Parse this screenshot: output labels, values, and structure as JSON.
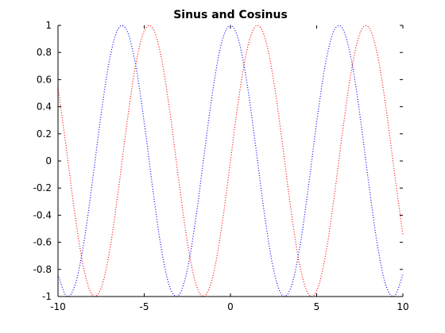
{
  "chart_data": {
    "type": "line",
    "title": "Sinus and Cosinus",
    "xlabel": "",
    "ylabel": "",
    "xlim": [
      -10,
      10
    ],
    "ylim": [
      -1,
      1
    ],
    "grid": false,
    "legend": "none",
    "xticks": [
      -10,
      -5,
      0,
      5,
      10
    ],
    "xtick_labels": [
      "-10",
      "-5",
      "0",
      "5",
      "10"
    ],
    "yticks": [
      1,
      0.8,
      0.6,
      0.4,
      0.2,
      0,
      -0.2,
      -0.4,
      -0.6,
      -0.8,
      -1
    ],
    "ytick_labels": [
      "1",
      "0.8",
      "0.6",
      "0.4",
      "0.2",
      "0",
      "-0.2",
      "-0.4",
      "-0.6",
      "-0.8",
      "-1"
    ],
    "series": [
      {
        "color": "#0000ff",
        "line_style": "dotted",
        "x": [
          -10,
          -9.5,
          -9,
          -8.5,
          -8,
          -7.5,
          -7,
          -6.5,
          -6,
          -5.5,
          -5,
          -4.5,
          -4,
          -3.5,
          -3,
          -2.5,
          -2,
          -1.5,
          -1,
          -0.5,
          0,
          0.5,
          1,
          1.5,
          2,
          2.5,
          3,
          3.5,
          4,
          4.5,
          5,
          5.5,
          6,
          6.5,
          7,
          7.5,
          8,
          8.5,
          9,
          9.5,
          10
        ],
        "y": [
          -0.839,
          -0.997,
          -0.911,
          -0.602,
          -0.146,
          0.347,
          0.754,
          0.977,
          0.96,
          0.709,
          0.284,
          -0.211,
          -0.654,
          -0.936,
          -0.99,
          -0.801,
          -0.416,
          0.071,
          0.54,
          0.878,
          1.0,
          0.878,
          0.54,
          0.071,
          -0.416,
          -0.801,
          -0.99,
          -0.936,
          -0.654,
          -0.211,
          0.284,
          0.709,
          0.96,
          0.977,
          0.754,
          0.347,
          -0.146,
          -0.602,
          -0.911,
          -0.997,
          -0.839
        ]
      },
      {
        "color": "#ff0000",
        "line_style": "dotted",
        "x": [
          -10,
          -9.5,
          -9,
          -8.5,
          -8,
          -7.5,
          -7,
          -6.5,
          -6,
          -5.5,
          -5,
          -4.5,
          -4,
          -3.5,
          -3,
          -2.5,
          -2,
          -1.5,
          -1,
          -0.5,
          0,
          0.5,
          1,
          1.5,
          2,
          2.5,
          3,
          3.5,
          4,
          4.5,
          5,
          5.5,
          6,
          6.5,
          7,
          7.5,
          8,
          8.5,
          9,
          9.5,
          10
        ],
        "y": [
          0.544,
          0.075,
          -0.412,
          -0.798,
          -0.989,
          -0.938,
          -0.657,
          -0.215,
          0.279,
          0.706,
          0.959,
          0.978,
          0.757,
          0.351,
          -0.141,
          -0.598,
          -0.909,
          -0.997,
          -0.841,
          -0.479,
          0.0,
          0.479,
          0.841,
          0.997,
          0.909,
          0.598,
          0.141,
          -0.351,
          -0.757,
          -0.978,
          -0.959,
          -0.706,
          -0.279,
          0.215,
          0.657,
          0.938,
          0.989,
          0.798,
          0.412,
          -0.075,
          -0.544
        ]
      }
    ]
  }
}
